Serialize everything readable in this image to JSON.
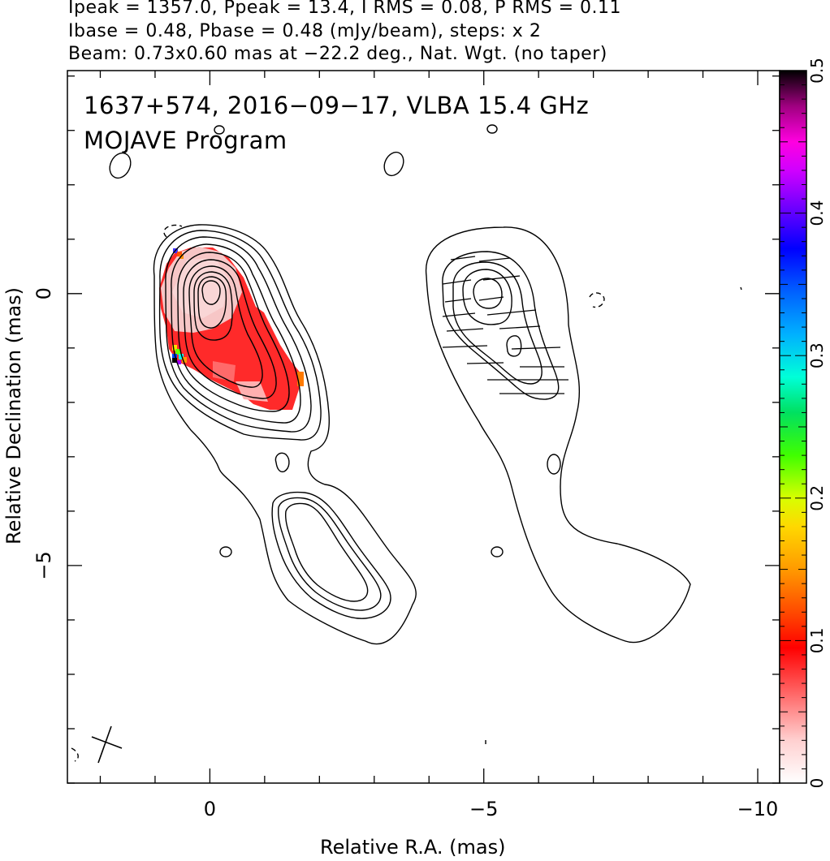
{
  "header": {
    "line1": "Ipeak = 1357.0, Ppeak = 13.4, I RMS = 0.08, P RMS = 0.11",
    "line2": "Ibase = 0.48, Pbase = 0.48 (mJy/beam), steps: x 2",
    "line3": "Beam: 0.73x0.60 mas at −22.2 deg., Nat. Wgt. (no taper)"
  },
  "plot_title": {
    "line1": "1637+574, 2016−09−17, VLBA 15.4 GHz",
    "line2": "MOJAVE Program"
  },
  "chart_data": {
    "type": "contour",
    "xlabel": "Relative R.A. (mas)",
    "ylabel": "Relative Declination (mas)",
    "xlim": [
      2.6,
      -10.4
    ],
    "ylim": [
      -9.0,
      4.1
    ],
    "x_ticks": [
      0,
      -5,
      -10
    ],
    "x_tick_labels": [
      "0",
      "−5",
      "−10"
    ],
    "y_ticks": [
      0,
      -5
    ],
    "y_tick_labels": [
      "0",
      "−5"
    ],
    "grid": false,
    "colorbar": {
      "range": [
        0,
        0.5
      ],
      "ticks": [
        0,
        0.1,
        0.2,
        0.3,
        0.4,
        0.5
      ],
      "tick_labels": [
        "0",
        "0.1",
        "0.2",
        "0.3",
        "0.4",
        "0.5"
      ],
      "placement": "right"
    },
    "total_intensity_panel": {
      "core": [
        0.0,
        0.0
      ],
      "contour_count": 10,
      "polarization_fraction_color": true
    },
    "polarization_panel": {
      "offset_ra": -5.0,
      "core": [
        0.0,
        0.0
      ],
      "contour_count": 6,
      "evpa_ticks": true
    }
  }
}
